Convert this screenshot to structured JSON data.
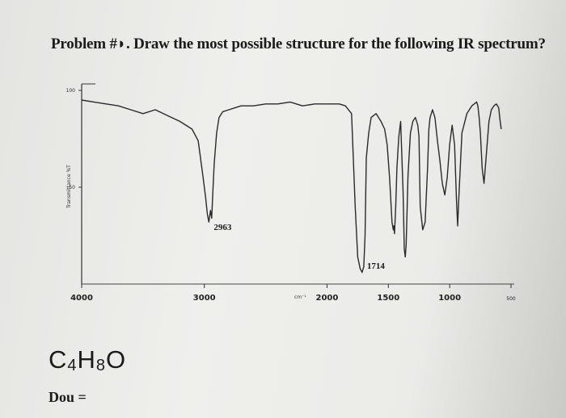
{
  "problem": {
    "title": "Problem #◗. Draw the most possible structure for the following IR spectrum?",
    "formula": "C4H8O",
    "dou_label": "Dou ="
  },
  "chart_data": {
    "type": "line",
    "title": "",
    "xlabel": "cm⁻¹",
    "ylabel": "Transmittance %T",
    "x_reversed": true,
    "xlim": [
      4000,
      500
    ],
    "ylim": [
      0,
      100
    ],
    "x_tick_labels": [
      {
        "x": 4000,
        "text": "4000"
      },
      {
        "x": 3000,
        "text": "3000"
      },
      {
        "x": 2000,
        "text": "2000"
      },
      {
        "x": 1500,
        "text": "1500"
      },
      {
        "x": 1000,
        "text": "1000"
      },
      {
        "x": 500,
        "text": "500"
      }
    ],
    "y_tick_labels": [
      {
        "y": 100,
        "text": "100"
      },
      {
        "y": 50,
        "text": "50"
      }
    ],
    "annotations": [
      {
        "x": 2963,
        "y": 28,
        "text": "2963"
      },
      {
        "x": 1714,
        "y": 8,
        "text": "1714"
      }
    ],
    "series": [
      {
        "x": [
          4000,
          3900,
          3800,
          3700,
          3600,
          3500,
          3400,
          3300,
          3200,
          3100,
          3050,
          3010,
          2990,
          2975,
          2963,
          2950,
          2940,
          2930,
          2920,
          2900,
          2880,
          2850,
          2800,
          2750,
          2700,
          2600,
          2500,
          2400,
          2300,
          2200,
          2100,
          2000,
          1900,
          1850,
          1800,
          1770,
          1750,
          1730,
          1714,
          1700,
          1690,
          1680,
          1660,
          1640,
          1600,
          1560,
          1530,
          1510,
          1490,
          1470,
          1460,
          1455,
          1450,
          1440,
          1430,
          1415,
          1400,
          1380,
          1370,
          1362,
          1355,
          1340,
          1320,
          1300,
          1280,
          1260,
          1250,
          1240,
          1220,
          1200,
          1180,
          1170,
          1160,
          1150,
          1140,
          1120,
          1100,
          1080,
          1060,
          1040,
          1020,
          1000,
          980,
          960,
          945,
          935,
          925,
          900,
          860,
          820,
          800,
          780,
          770,
          760,
          750,
          735,
          720,
          700,
          680,
          660,
          640,
          620,
          600,
          590,
          580
        ],
        "y": [
          95,
          94,
          93,
          92,
          90,
          88,
          90,
          87,
          84,
          80,
          74,
          55,
          45,
          36,
          32,
          38,
          34,
          48,
          62,
          78,
          86,
          89,
          90,
          91,
          92,
          92,
          93,
          93,
          94,
          92,
          93,
          93,
          93,
          92,
          88,
          40,
          14,
          8,
          6,
          9,
          25,
          65,
          78,
          86,
          88,
          84,
          80,
          72,
          55,
          32,
          28,
          30,
          26,
          40,
          60,
          76,
          84,
          48,
          18,
          14,
          20,
          56,
          78,
          84,
          86,
          82,
          76,
          40,
          28,
          32,
          60,
          80,
          86,
          88,
          90,
          86,
          74,
          64,
          52,
          46,
          55,
          72,
          82,
          72,
          44,
          30,
          45,
          78,
          88,
          92,
          93,
          94,
          92,
          86,
          78,
          60,
          52,
          68,
          84,
          90,
          92,
          93,
          91,
          85,
          80
        ]
      }
    ]
  }
}
